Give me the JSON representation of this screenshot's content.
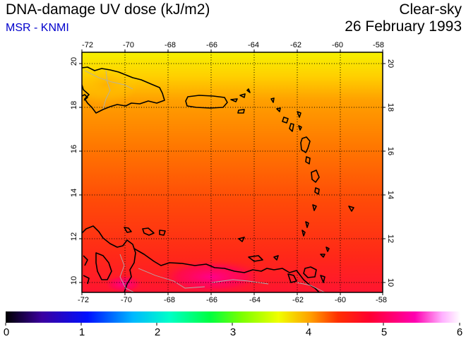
{
  "header": {
    "title": "DNA-damage UV dose (kJ/m2)",
    "subtitle": "MSR - KNMI",
    "condition": "Clear-sky",
    "date": "26 February 1993"
  },
  "map": {
    "lon_range": [
      -72,
      -58
    ],
    "lat_range": [
      9.5,
      20.5
    ],
    "lon_ticks": [
      "-72",
      "-70",
      "-68",
      "-66",
      "-64",
      "-62",
      "-60",
      "-58"
    ],
    "lat_ticks": [
      "10",
      "12",
      "14",
      "16",
      "18",
      "20"
    ],
    "grid": true
  },
  "colorbar": {
    "min": 0,
    "max": 6,
    "tick_labels": [
      "0",
      "1",
      "2",
      "3",
      "4",
      "5",
      "6"
    ],
    "colors": [
      "#000000",
      "#3b00a0",
      "#0010ff",
      "#00b8ff",
      "#00ffc8",
      "#00ff40",
      "#7cff00",
      "#f0ff00",
      "#ffa000",
      "#ff3000",
      "#ff0030",
      "#ff00b0",
      "#ffb0ff",
      "#ffffff"
    ]
  },
  "colors": {
    "field_north": "#f3ed00",
    "field_mid": "#ff7a00",
    "field_south": "#ff2818",
    "hotspot": "#ff0078",
    "coastline": "#000000",
    "border": "#a8a8a8",
    "subtitle": "#0000cc"
  }
}
